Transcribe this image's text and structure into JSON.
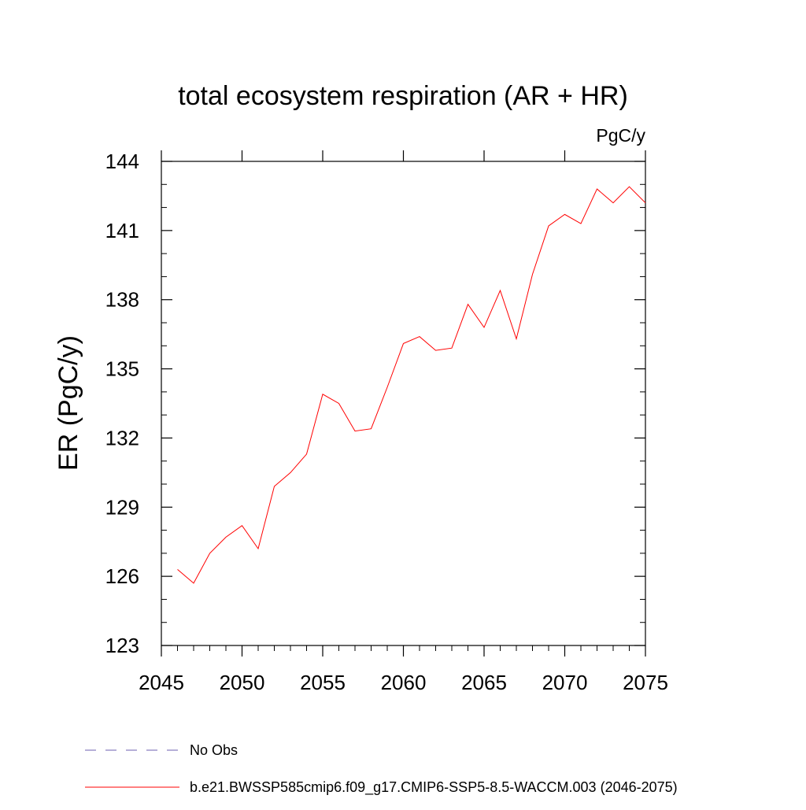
{
  "chart_data": {
    "type": "line",
    "title": "total ecosystem respiration (AR + HR)",
    "units_label": "PgC/y",
    "xlabel": "",
    "ylabel": "ER  (PgC/y)",
    "xlim": [
      2045,
      2075
    ],
    "ylim": [
      123,
      144
    ],
    "x_ticks": [
      2045,
      2050,
      2055,
      2060,
      2065,
      2070,
      2075
    ],
    "y_ticks": [
      123,
      126,
      129,
      132,
      135,
      138,
      141,
      144
    ],
    "grid": false,
    "legend_placement": "bottom",
    "series": [
      {
        "name": "b.e21.BWSSP585cmip6.f09_g17.CMIP6-SSP5-8.5-WACCM.003 (2046-2075)",
        "color": "#ff0000",
        "style": "solid",
        "x": [
          2046,
          2047,
          2048,
          2049,
          2050,
          2051,
          2052,
          2053,
          2054,
          2055,
          2056,
          2057,
          2058,
          2059,
          2060,
          2061,
          2062,
          2063,
          2064,
          2065,
          2066,
          2067,
          2068,
          2069,
          2070,
          2071,
          2072,
          2073,
          2074,
          2075
        ],
        "values": [
          126.3,
          125.7,
          127.0,
          127.7,
          128.2,
          127.2,
          129.9,
          130.5,
          131.3,
          133.9,
          133.5,
          132.3,
          132.4,
          134.2,
          136.1,
          136.4,
          135.8,
          135.9,
          137.8,
          136.8,
          138.4,
          136.3,
          139.1,
          141.2,
          141.7,
          141.3,
          142.8,
          142.2,
          142.9,
          142.2
        ]
      },
      {
        "name": "No Obs",
        "color": "#6c5fb0",
        "style": "dashed",
        "x": [],
        "values": []
      }
    ]
  }
}
